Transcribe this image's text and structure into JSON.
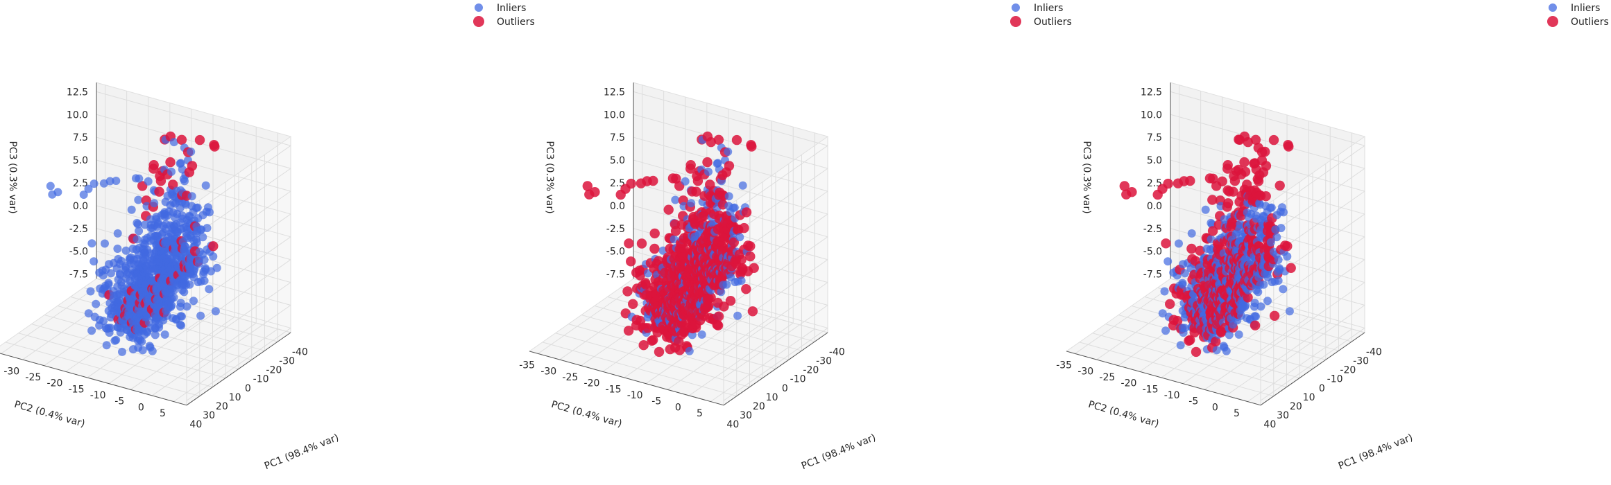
{
  "chart_data": [
    {
      "type": "scatter",
      "projection": "3d",
      "title": "",
      "xlabel": "PC1 (98.4% var)",
      "ylabel": "PC2 (0.4% var)",
      "zlabel": "PC3 (0.3% var)",
      "xticks": [
        40,
        30,
        20,
        10,
        0,
        -10,
        -20,
        -30,
        -40
      ],
      "yticks": [
        -35,
        -30,
        -25,
        -20,
        -15,
        -10,
        -5,
        0,
        5
      ],
      "zticks": [
        -7.5,
        -5.0,
        -2.5,
        0.0,
        2.5,
        5.0,
        7.5,
        10.0,
        12.5
      ],
      "xlim": [
        40,
        -40
      ],
      "ylim": [
        -37,
        8
      ],
      "zlim": [
        -8,
        13.5
      ],
      "legend": {
        "placement": "top-right",
        "entries": [
          "Inliers",
          "Outliers"
        ]
      },
      "grid": true,
      "series": [
        {
          "name": "Inliers",
          "color": "#4169E1",
          "outlier_pattern": "sparse"
        },
        {
          "name": "Outliers",
          "color": "#DC143C"
        }
      ],
      "isolated_points": [
        [
          2,
          -35,
          6.6
        ],
        [
          4,
          -34,
          6.0
        ],
        [
          3,
          -33,
          6.3
        ],
        [
          3,
          -27,
          6.8
        ],
        [
          6,
          -25,
          8.0
        ],
        [
          5,
          -24,
          8.6
        ],
        [
          4,
          -22,
          8.8
        ],
        [
          6,
          -20,
          9.5
        ],
        [
          8,
          -18,
          10.0
        ],
        [
          6,
          -14,
          10.6
        ],
        [
          7,
          -13,
          10.8
        ]
      ]
    },
    {
      "type": "scatter",
      "projection": "3d",
      "title": "",
      "xlabel": "PC1 (98.4% var)",
      "ylabel": "PC2 (0.4% var)",
      "zlabel": "PC3 (0.3% var)",
      "xticks": [
        40,
        30,
        20,
        10,
        0,
        -10,
        -20,
        -30,
        -40
      ],
      "yticks": [
        -35,
        -30,
        -25,
        -20,
        -15,
        -10,
        -5,
        0,
        5
      ],
      "zticks": [
        -7.5,
        -5.0,
        -2.5,
        0.0,
        2.5,
        5.0,
        7.5,
        10.0,
        12.5
      ],
      "xlim": [
        40,
        -40
      ],
      "ylim": [
        -37,
        8
      ],
      "zlim": [
        -8,
        13.5
      ],
      "legend": {
        "placement": "top-right",
        "entries": [
          "Inliers",
          "Outliers"
        ]
      },
      "grid": true,
      "series": [
        {
          "name": "Inliers",
          "color": "#4169E1",
          "outlier_pattern": "dense"
        },
        {
          "name": "Outliers",
          "color": "#DC143C"
        }
      ],
      "isolated_points": [
        [
          2,
          -35,
          6.6
        ],
        [
          4,
          -34,
          6.0
        ],
        [
          3,
          -33,
          6.3
        ],
        [
          3,
          -27,
          6.8
        ],
        [
          6,
          -25,
          8.0
        ],
        [
          5,
          -24,
          8.6
        ],
        [
          4,
          -22,
          8.8
        ],
        [
          6,
          -20,
          9.5
        ],
        [
          8,
          -18,
          10.0
        ],
        [
          6,
          -14,
          10.6
        ],
        [
          7,
          -13,
          10.8
        ]
      ]
    },
    {
      "type": "scatter",
      "projection": "3d",
      "title": "",
      "xlabel": "PC1 (98.4% var)",
      "ylabel": "PC2 (0.4% var)",
      "zlabel": "PC3 (0.3% var)",
      "xticks": [
        40,
        30,
        20,
        10,
        0,
        -10,
        -20,
        -30,
        -40
      ],
      "yticks": [
        -35,
        -30,
        -25,
        -20,
        -15,
        -10,
        -5,
        0,
        5
      ],
      "zticks": [
        -7.5,
        -5.0,
        -2.5,
        0.0,
        2.5,
        5.0,
        7.5,
        10.0,
        12.5
      ],
      "xlim": [
        40,
        -40
      ],
      "ylim": [
        -37,
        8
      ],
      "zlim": [
        -8,
        13.5
      ],
      "legend": {
        "placement": "top-right",
        "entries": [
          "Inliers",
          "Outliers"
        ]
      },
      "grid": true,
      "series": [
        {
          "name": "Inliers",
          "color": "#4169E1",
          "outlier_pattern": "banded"
        },
        {
          "name": "Outliers",
          "color": "#DC143C"
        }
      ],
      "isolated_points": [
        [
          2,
          -35,
          6.6
        ],
        [
          4,
          -34,
          6.0
        ],
        [
          3,
          -33,
          6.3
        ],
        [
          3,
          -27,
          6.8
        ],
        [
          6,
          -25,
          8.0
        ],
        [
          5,
          -24,
          8.6
        ],
        [
          4,
          -22,
          8.8
        ],
        [
          6,
          -20,
          9.5
        ],
        [
          8,
          -18,
          10.0
        ],
        [
          6,
          -14,
          10.6
        ],
        [
          7,
          -13,
          10.8
        ]
      ]
    }
  ]
}
